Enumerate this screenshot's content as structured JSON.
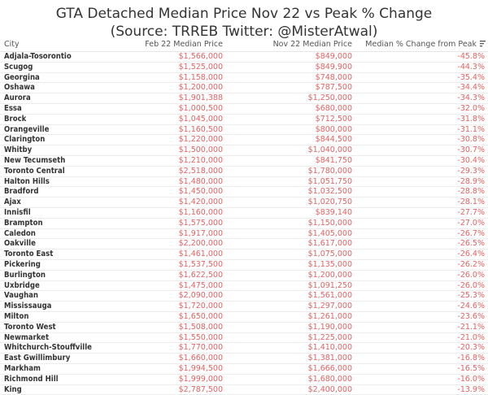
{
  "title": "GTA Detached Median Price Nov 22 vs Peak % Change",
  "subtitle": "(Source: TRREB Twitter: @MisterAtwal)",
  "colors": {
    "value_text": "#e06363",
    "city_text": "#333333",
    "header_text": "#555555",
    "row_border": "#ececec"
  },
  "icons": {
    "sort": "sort-descending-icon"
  },
  "chart_data": {
    "type": "table",
    "title": "GTA Detached Median Price Nov 22 vs Peak % Change",
    "subtitle": "(Source: TRREB Twitter: @MisterAtwal)",
    "columns": [
      "City",
      "Feb 22 Median Price",
      "Nov 22 Median Price",
      "Median % Change from Peak"
    ],
    "sort": {
      "column": "Median % Change from Peak",
      "order": "ascending"
    },
    "rows": [
      {
        "city": "Adjala-Tosorontio",
        "feb": "$1,566,000",
        "nov": "$849,000",
        "change": "-45.8%"
      },
      {
        "city": "Scugog",
        "feb": "$1,525,000",
        "nov": "$849,900",
        "change": "-44.3%"
      },
      {
        "city": "Georgina",
        "feb": "$1,158,000",
        "nov": "$748,000",
        "change": "-35.4%"
      },
      {
        "city": "Oshawa",
        "feb": "$1,200,000",
        "nov": "$787,500",
        "change": "-34.4%"
      },
      {
        "city": "Aurora",
        "feb": "$1,901,388",
        "nov": "$1,250,000",
        "change": "-34.3%"
      },
      {
        "city": "Essa",
        "feb": "$1,000,500",
        "nov": "$680,000",
        "change": "-32.0%"
      },
      {
        "city": "Brock",
        "feb": "$1,045,000",
        "nov": "$712,500",
        "change": "-31.8%"
      },
      {
        "city": "Orangeville",
        "feb": "$1,160,500",
        "nov": "$800,000",
        "change": "-31.1%"
      },
      {
        "city": "Clarington",
        "feb": "$1,220,000",
        "nov": "$844,500",
        "change": "-30.8%"
      },
      {
        "city": "Whitby",
        "feb": "$1,500,000",
        "nov": "$1,040,000",
        "change": "-30.7%"
      },
      {
        "city": "New Tecumseth",
        "feb": "$1,210,000",
        "nov": "$841,750",
        "change": "-30.4%"
      },
      {
        "city": "Toronto Central",
        "feb": "$2,518,000",
        "nov": "$1,780,000",
        "change": "-29.3%"
      },
      {
        "city": "Halton Hills",
        "feb": "$1,480,000",
        "nov": "$1,051,750",
        "change": "-28.9%"
      },
      {
        "city": "Bradford",
        "feb": "$1,450,000",
        "nov": "$1,032,500",
        "change": "-28.8%"
      },
      {
        "city": "Ajax",
        "feb": "$1,420,000",
        "nov": "$1,020,750",
        "change": "-28.1%"
      },
      {
        "city": "Innisfil",
        "feb": "$1,160,000",
        "nov": "$839,140",
        "change": "-27.7%"
      },
      {
        "city": "Brampton",
        "feb": "$1,575,000",
        "nov": "$1,150,000",
        "change": "-27.0%"
      },
      {
        "city": "Caledon",
        "feb": "$1,917,000",
        "nov": "$1,405,000",
        "change": "-26.7%"
      },
      {
        "city": "Oakville",
        "feb": "$2,200,000",
        "nov": "$1,617,000",
        "change": "-26.5%"
      },
      {
        "city": "Toronto East",
        "feb": "$1,461,000",
        "nov": "$1,075,000",
        "change": "-26.4%"
      },
      {
        "city": "Pickering",
        "feb": "$1,537,500",
        "nov": "$1,135,000",
        "change": "-26.2%"
      },
      {
        "city": "Burlington",
        "feb": "$1,622,500",
        "nov": "$1,200,000",
        "change": "-26.0%"
      },
      {
        "city": "Uxbridge",
        "feb": "$1,475,000",
        "nov": "$1,091,250",
        "change": "-26.0%"
      },
      {
        "city": "Vaughan",
        "feb": "$2,090,000",
        "nov": "$1,561,000",
        "change": "-25.3%"
      },
      {
        "city": "Mississauga",
        "feb": "$1,720,000",
        "nov": "$1,297,000",
        "change": "-24.6%"
      },
      {
        "city": "Milton",
        "feb": "$1,650,000",
        "nov": "$1,261,000",
        "change": "-23.6%"
      },
      {
        "city": "Toronto West",
        "feb": "$1,508,000",
        "nov": "$1,190,000",
        "change": "-21.1%"
      },
      {
        "city": "Newmarket",
        "feb": "$1,550,000",
        "nov": "$1,225,000",
        "change": "-21.0%"
      },
      {
        "city": "Whitchurch-Stouffville",
        "feb": "$1,770,000",
        "nov": "$1,410,000",
        "change": "-20.3%"
      },
      {
        "city": "East Gwillimbury",
        "feb": "$1,660,000",
        "nov": "$1,381,000",
        "change": "-16.8%"
      },
      {
        "city": "Markham",
        "feb": "$1,994,500",
        "nov": "$1,666,000",
        "change": "-16.5%"
      },
      {
        "city": "Richmond Hill",
        "feb": "$1,999,000",
        "nov": "$1,680,000",
        "change": "-16.0%"
      },
      {
        "city": "King",
        "feb": "$2,787,500",
        "nov": "$2,400,000",
        "change": "-13.9%"
      }
    ]
  }
}
